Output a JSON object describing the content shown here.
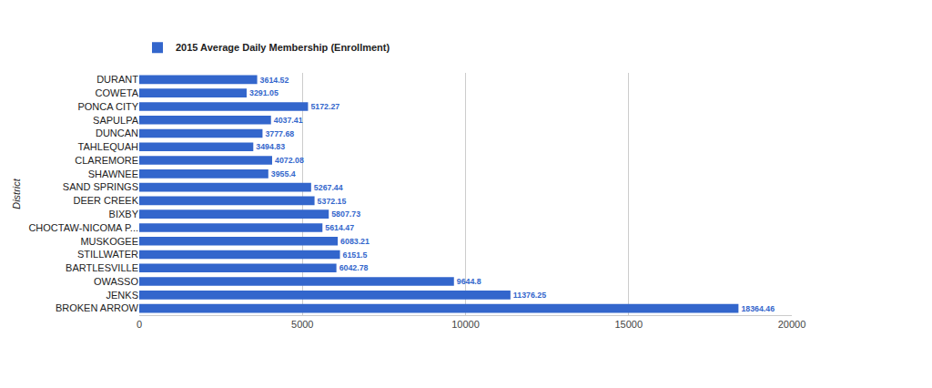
{
  "chart_data": {
    "type": "bar",
    "orientation": "horizontal",
    "y_label": "District",
    "categories": [
      "DURANT",
      "COWETA",
      "PONCA CITY",
      "SAPULPA",
      "DUNCAN",
      "TAHLEQUAH",
      "CLAREMORE",
      "SHAWNEE",
      "SAND SPRINGS",
      "DEER CREEK",
      "BIXBY",
      "CHOCTAW-NICOMA P...",
      "MUSKOGEE",
      "STILLWATER",
      "BARTLESVILLE",
      "OWASSO",
      "JENKS",
      "BROKEN ARROW"
    ],
    "series": [
      {
        "name": "2015 Average Daily Membership (Enrollment)",
        "color": "#3366cc",
        "values": [
          3614.52,
          3291.05,
          5172.27,
          4037.41,
          3777.68,
          3494.83,
          4072.08,
          3955.4,
          5267.44,
          5372.15,
          5807.73,
          5614.47,
          6083.21,
          6151.5,
          6042.78,
          9644.8,
          11376.25,
          18364.46
        ]
      }
    ],
    "xlim": [
      0,
      20000
    ],
    "xticks": [
      0,
      5000,
      10000,
      15000,
      20000
    ],
    "grid": true,
    "legend": "top",
    "data_labels": true
  }
}
